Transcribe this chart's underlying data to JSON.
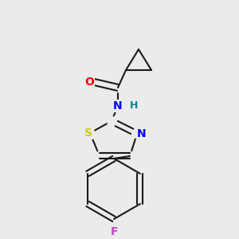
{
  "bg_color": "#ebebeb",
  "bond_color": "#1a1a1a",
  "atom_colors": {
    "O": "#ff0000",
    "N": "#0000ff",
    "S": "#cccc00",
    "F": "#cc44cc",
    "H": "#008888",
    "C": "#1a1a1a"
  },
  "figsize": [
    3.0,
    3.0
  ],
  "dpi": 100
}
